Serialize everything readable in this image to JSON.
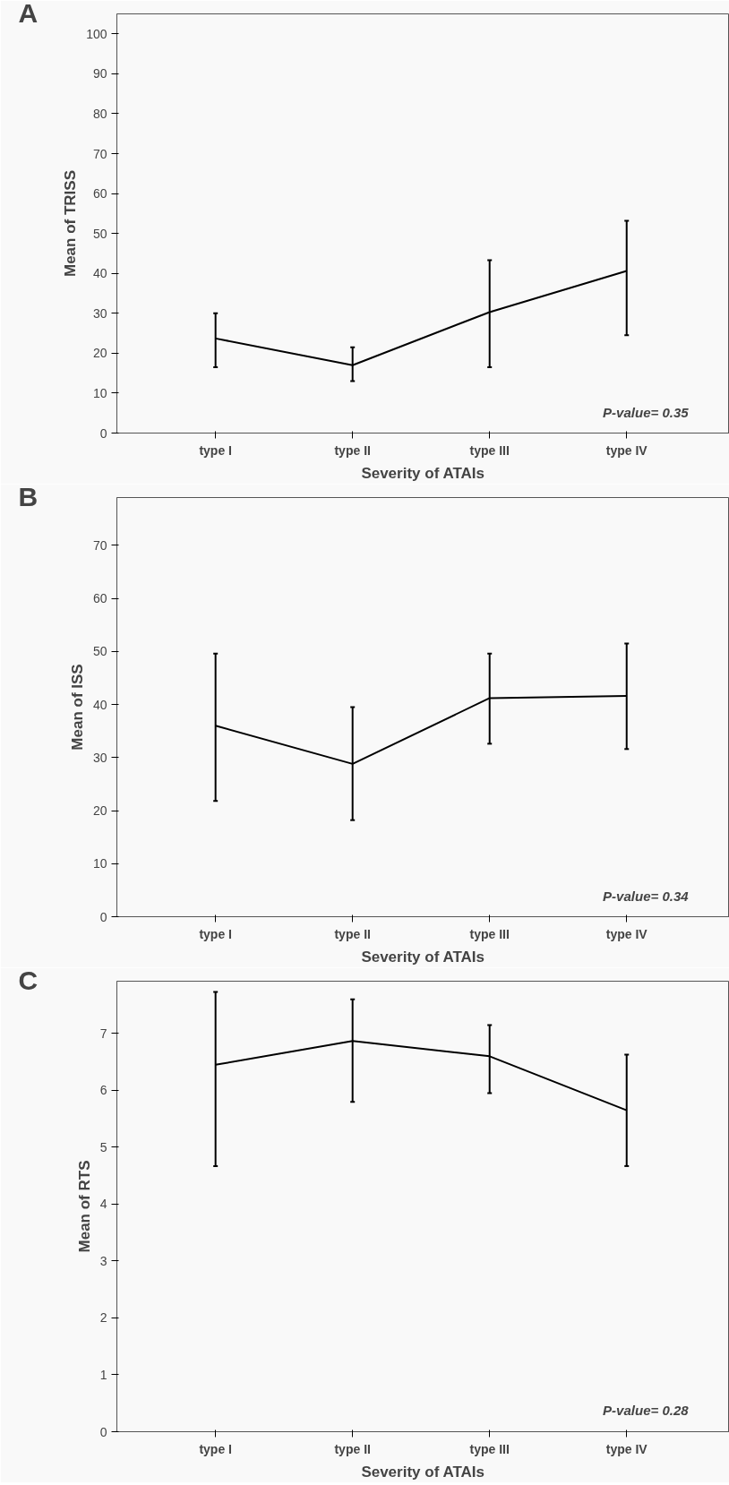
{
  "chart_data": [
    {
      "type": "line",
      "title": "A",
      "xlabel": "Severity of ATAIs",
      "ylabel": "Mean of TRISS",
      "categories": [
        "type I",
        "type II",
        "type III",
        "type IV"
      ],
      "series": [
        {
          "color": "#000000",
          "values": [
            23.7,
            17,
            30.3,
            40.6
          ],
          "errors": [
            [
              16.5,
              30
            ],
            [
              13,
              21.5
            ],
            [
              16.5,
              43.3
            ],
            [
              24.5,
              53.2
            ]
          ]
        }
      ],
      "ylim": [
        0,
        105
      ],
      "yticks": [
        0,
        10,
        20,
        30,
        40,
        50,
        60,
        70,
        80,
        90,
        100
      ],
      "grid": false,
      "marker": "none",
      "line_style": "solid",
      "annotations": [
        "P-value= 0.35"
      ]
    },
    {
      "type": "line",
      "title": "B",
      "xlabel": "Severity of ATAIs",
      "ylabel": "Mean of ISS",
      "categories": [
        "type I",
        "type II",
        "type III",
        "type IV"
      ],
      "series": [
        {
          "color": "#000000",
          "values": [
            36,
            28.8,
            41.2,
            41.6
          ],
          "errors": [
            [
              21.8,
              49.6
            ],
            [
              18.2,
              39.5
            ],
            [
              32.6,
              49.6
            ],
            [
              31.6,
              51.5
            ]
          ]
        }
      ],
      "ylim": [
        0,
        79
      ],
      "yticks": [
        0,
        10,
        20,
        30,
        40,
        50,
        60,
        70
      ],
      "grid": false,
      "marker": "none",
      "line_style": "solid",
      "annotations": [
        "P-value= 0.34"
      ]
    },
    {
      "type": "line",
      "title": "C",
      "xlabel": "Severity of ATAIs",
      "ylabel": "Mean of RTS",
      "categories": [
        "type I",
        "type II",
        "type III",
        "type IV"
      ],
      "series": [
        {
          "color": "#000000",
          "values": [
            6.45,
            6.87,
            6.6,
            5.65
          ],
          "errors": [
            [
              4.67,
              7.73
            ],
            [
              5.8,
              7.6
            ],
            [
              5.95,
              7.15
            ],
            [
              4.67,
              6.63
            ]
          ]
        }
      ],
      "ylim": [
        0,
        7.92
      ],
      "yticks": [
        0,
        1,
        2,
        3,
        4,
        5,
        6,
        7
      ],
      "grid": false,
      "marker": "none",
      "line_style": "solid",
      "annotations": [
        "P-value= 0.28"
      ]
    }
  ]
}
